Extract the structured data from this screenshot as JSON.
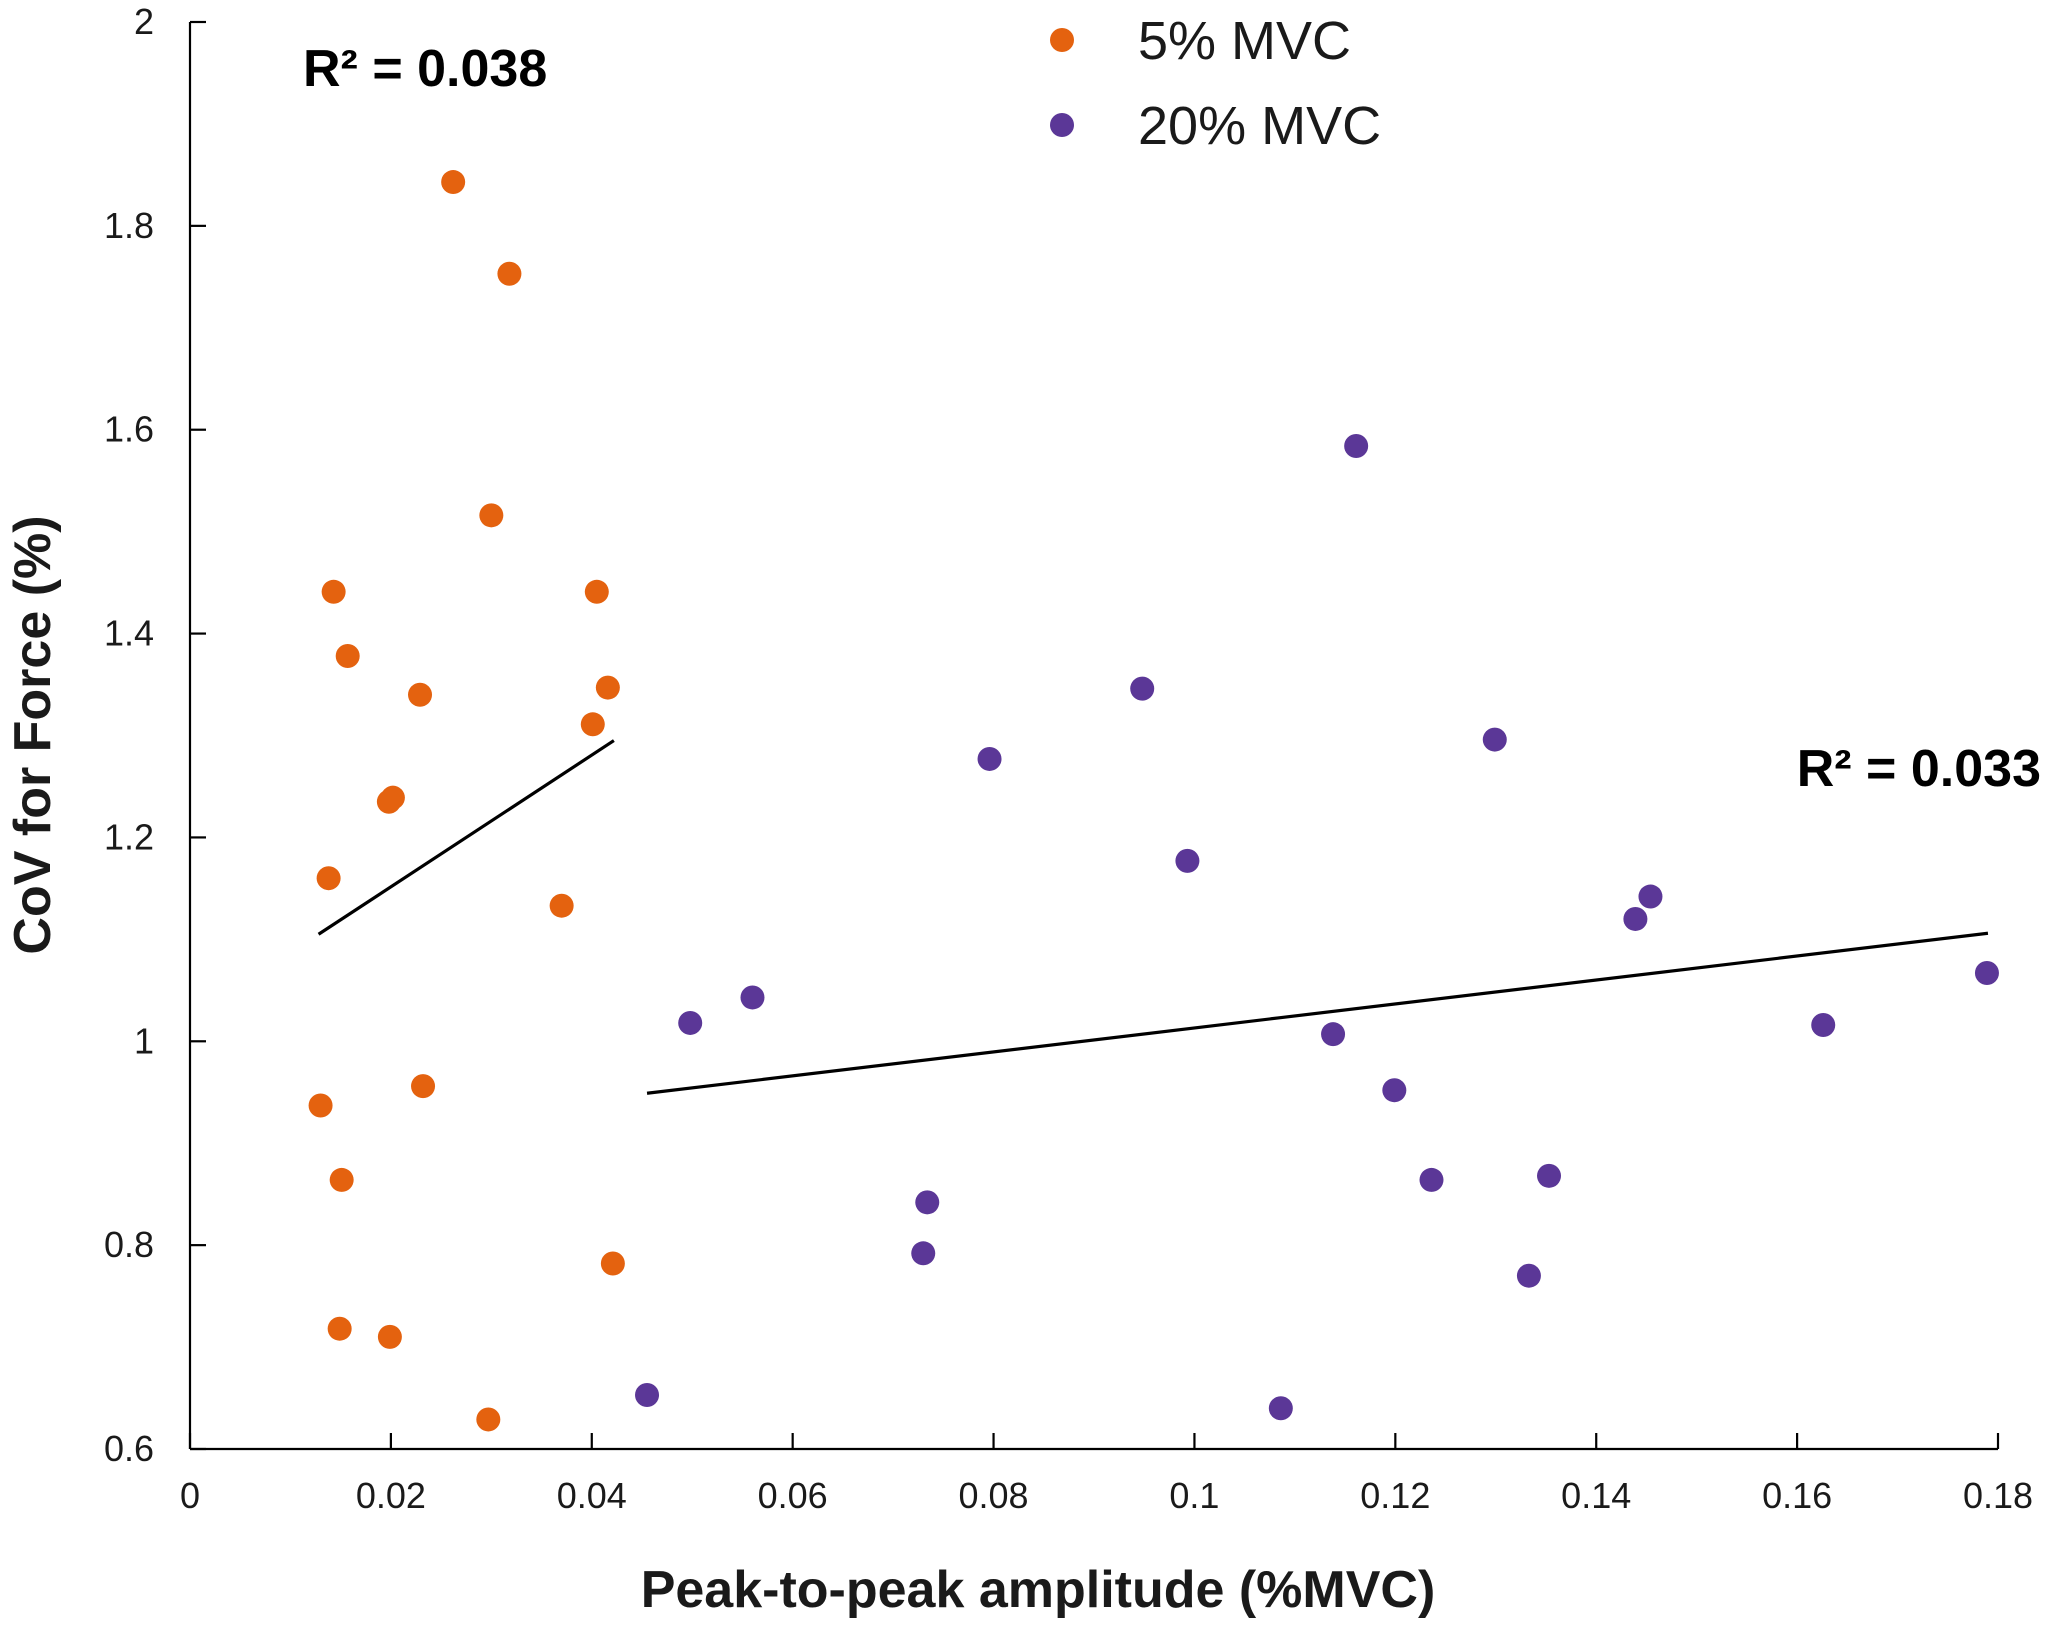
{
  "chart_data": {
    "type": "scatter",
    "title": "",
    "xlabel": "Peak-to-peak amplitude (%MVC)",
    "ylabel": "CoV for Force (%)",
    "xlim": [
      0,
      0.18
    ],
    "ylim": [
      0.6,
      2
    ],
    "x_ticks": [
      0,
      0.02,
      0.04,
      0.06,
      0.08,
      0.1,
      0.12,
      0.14,
      0.16,
      0.18
    ],
    "x_tick_labels": [
      "0",
      "0.02",
      "0.04",
      "0.06",
      "0.08",
      "0.1",
      "0.12",
      "0.14",
      "0.16",
      "0.18"
    ],
    "y_ticks": [
      0.6,
      0.8,
      1.0,
      1.2,
      1.4,
      1.6,
      1.8,
      2.0
    ],
    "y_tick_labels": [
      "0.6",
      "0.8",
      "1",
      "1.2",
      "1.4",
      "1.6",
      "1.8",
      "2"
    ],
    "grid": false,
    "legend_position": "top-center",
    "series": [
      {
        "name": "5% MVC",
        "color": "#e4620f",
        "points": [
          [
            0.0262,
            1.843
          ],
          [
            0.0318,
            1.753
          ],
          [
            0.03,
            1.516
          ],
          [
            0.0143,
            1.441
          ],
          [
            0.0405,
            1.441
          ],
          [
            0.0157,
            1.378
          ],
          [
            0.0229,
            1.34
          ],
          [
            0.0416,
            1.347
          ],
          [
            0.0401,
            1.311
          ],
          [
            0.0202,
            1.239
          ],
          [
            0.0198,
            1.235
          ],
          [
            0.0138,
            1.16
          ],
          [
            0.037,
            1.133
          ],
          [
            0.0232,
            0.956
          ],
          [
            0.013,
            0.937
          ],
          [
            0.0151,
            0.864
          ],
          [
            0.0421,
            0.782
          ],
          [
            0.0149,
            0.718
          ],
          [
            0.0199,
            0.71
          ],
          [
            0.0297,
            0.629
          ]
        ],
        "fit_line": [
          [
            0.0128,
            1.105
          ],
          [
            0.0422,
            1.295
          ]
        ],
        "annotation": "R² = 0.038"
      },
      {
        "name": "20% MVC",
        "color": "#5b3797",
        "points": [
          [
            0.1161,
            1.584
          ],
          [
            0.0948,
            1.346
          ],
          [
            0.1299,
            1.296
          ],
          [
            0.0796,
            1.277
          ],
          [
            0.0993,
            1.177
          ],
          [
            0.1454,
            1.142
          ],
          [
            0.1439,
            1.12
          ],
          [
            0.1789,
            1.067
          ],
          [
            0.056,
            1.043
          ],
          [
            0.0498,
            1.018
          ],
          [
            0.1626,
            1.016
          ],
          [
            0.1138,
            1.007
          ],
          [
            0.1199,
            0.952
          ],
          [
            0.1353,
            0.868
          ],
          [
            0.1236,
            0.864
          ],
          [
            0.0734,
            0.842
          ],
          [
            0.073,
            0.792
          ],
          [
            0.1333,
            0.77
          ],
          [
            0.0455,
            0.653
          ],
          [
            0.1086,
            0.64
          ]
        ],
        "fit_line": [
          [
            0.0455,
            0.949
          ],
          [
            0.179,
            1.106
          ]
        ],
        "annotation": "R² = 0.033"
      }
    ]
  }
}
